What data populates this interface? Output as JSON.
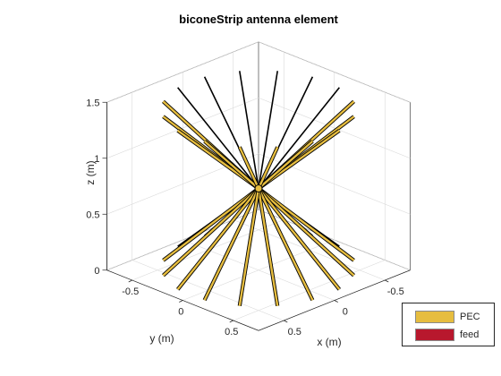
{
  "chart_data": {
    "type": "3d-line",
    "title": "biconeStrip antenna element",
    "xlabel": "x (m)",
    "ylabel": "y (m)",
    "zlabel": "z (m)",
    "x_ticks": [
      -0.5,
      0,
      0.5
    ],
    "y_ticks": [
      -0.5,
      0,
      0.5
    ],
    "z_ticks": [
      0,
      0.5,
      1,
      1.5
    ],
    "xlim": [
      -0.75,
      0.75
    ],
    "ylim": [
      -0.75,
      0.75
    ],
    "zlim": [
      0,
      1.5
    ],
    "grid": true,
    "legend_position": "bottom-right",
    "series": [
      {
        "name": "PEC",
        "color": "#e6bd3f"
      },
      {
        "name": "feed",
        "color": "#b8182d"
      }
    ],
    "geometry": {
      "feed_height": 0.73,
      "strip_count": 16,
      "cone_tip_radius": 0.02,
      "upper_cone": {
        "end_radius": 0.68,
        "end_z": 1.44
      },
      "lower_cone": {
        "end_radius": 0.68,
        "end_z": 0.02
      }
    }
  }
}
